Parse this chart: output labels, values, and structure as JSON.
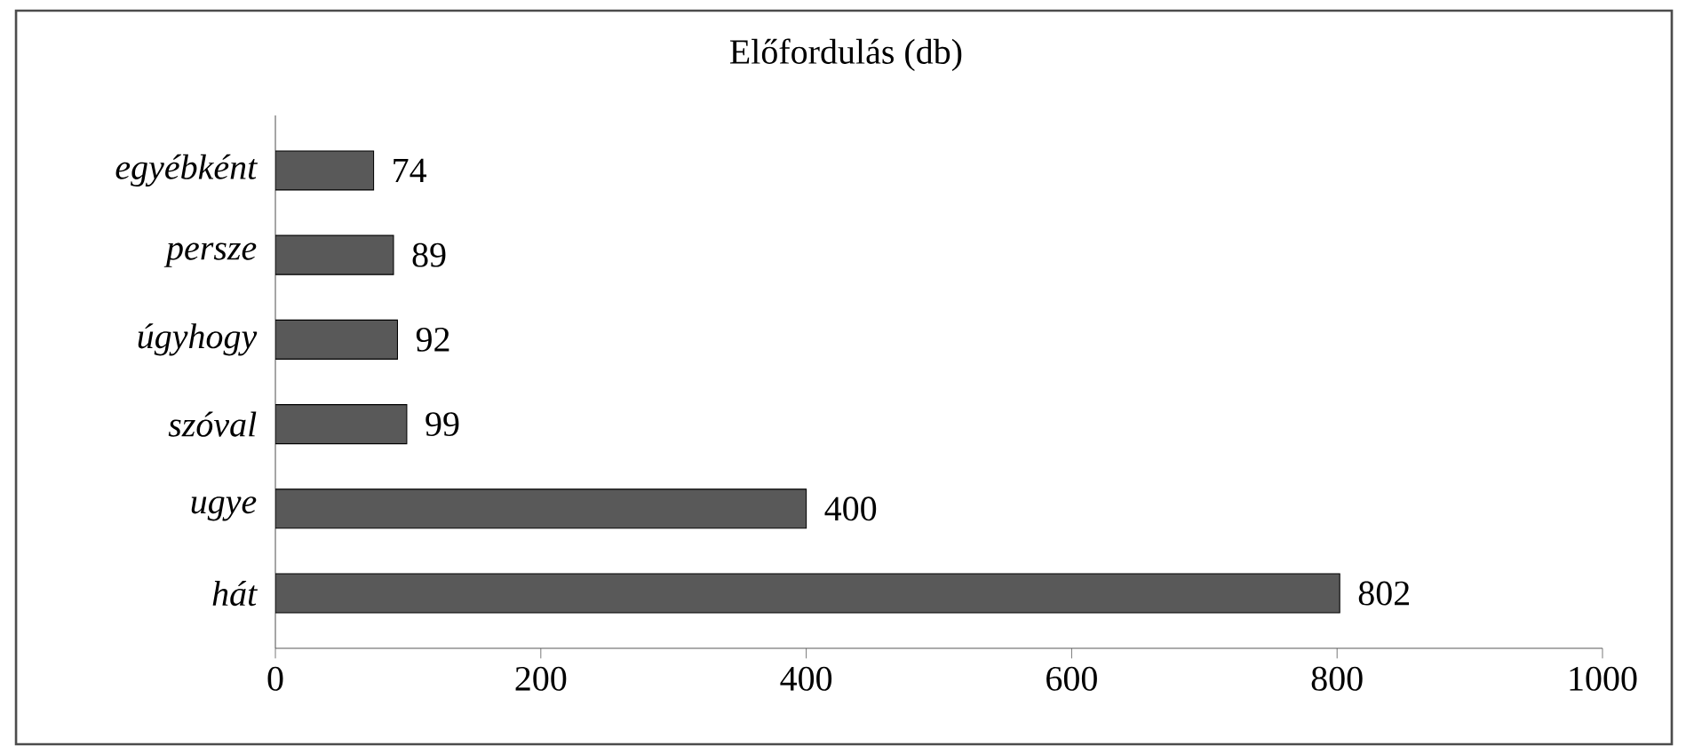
{
  "chart_data": {
    "type": "bar",
    "orientation": "horizontal",
    "title": "Előfordulás (db)",
    "categories": [
      "egyébként",
      "persze",
      "úgyhogy",
      "szóval",
      "ugye",
      "hát"
    ],
    "values": [
      74,
      89,
      92,
      99,
      400,
      802
    ],
    "color": "#595959",
    "xlim": [
      0,
      1000
    ],
    "xticks": [
      0,
      200,
      400,
      600,
      800,
      1000
    ],
    "data_labels": true
  }
}
